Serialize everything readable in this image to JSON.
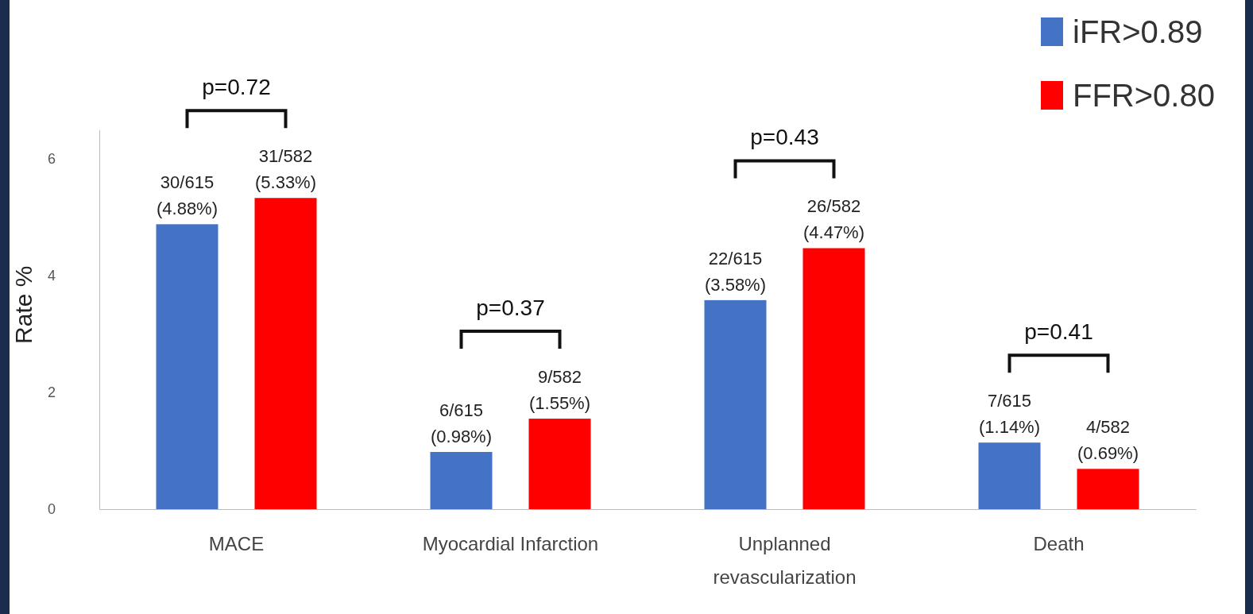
{
  "chart_data": {
    "type": "bar",
    "ylabel": "Rate %",
    "categories": [
      "MACE",
      "Myocardial Infarction",
      "Unplanned revascularization",
      "Death"
    ],
    "series": [
      {
        "name": "iFR>0.89",
        "color": "#4472c4",
        "values": [
          4.88,
          0.98,
          3.58,
          1.14
        ],
        "value_labels": [
          "30/615\n(4.88%)",
          "6/615\n(0.98%)",
          "22/615\n(3.58%)",
          "7/615\n(1.14%)"
        ]
      },
      {
        "name": "FFR>0.80",
        "color": "#ff0000",
        "values": [
          5.33,
          1.55,
          4.47,
          0.69
        ],
        "value_labels": [
          "31/582\n(5.33%)",
          "9/582\n(1.55%)",
          "26/582\n(4.47%)",
          "4/582\n(0.69%)"
        ]
      }
    ],
    "ylim": [
      0,
      6.5
    ],
    "yticks": [
      0,
      2,
      4,
      6
    ],
    "grid": false,
    "legend": "top right",
    "annotations": [
      "p=0.72",
      "p=0.37",
      "p=0.43",
      "p=0.41"
    ]
  }
}
